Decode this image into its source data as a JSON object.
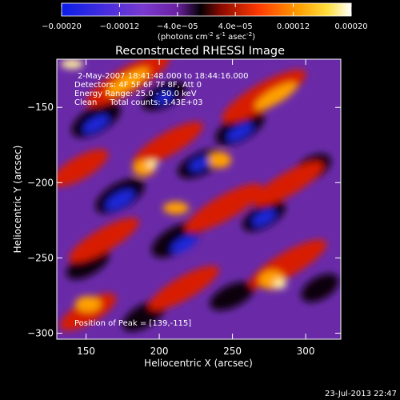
{
  "chart_data": {
    "type": "heatmap",
    "title": "Reconstructed RHESSI Image",
    "xlabel": "Heliocentric X (arcsec)",
    "ylabel": "Heliocentric Y (arcsec)",
    "xlim": [
      130,
      324
    ],
    "ylim": [
      -304,
      -118
    ],
    "x_ticks": [
      150,
      200,
      250,
      300
    ],
    "y_ticks": [
      -150,
      -200,
      -250,
      -300
    ],
    "colorbar": {
      "ticks": [
        "-0.00020",
        "-0.00012",
        "-4.0e-05",
        "4.0e-05",
        "0.00012",
        "0.00020"
      ],
      "tick_values": [
        -0.0002,
        -0.00012,
        -4e-05,
        4e-05,
        0.00012,
        0.0002
      ],
      "range": [
        -0.0002,
        0.0002
      ],
      "units_prefix": "(photons cm",
      "units_exp1": "-2",
      "units_mid": " s",
      "units_exp2": "-1",
      "units_mid2": " asec",
      "units_exp3": "-2",
      "units_suffix": ")"
    },
    "annotations": {
      "time": "2-May-2007 18:41:48.000 to 18:44:16.000",
      "detectors": "Detectors: 4F 5F 6F 7F 8F, Att 0",
      "energy": "Energy Range: 25.0 - 50.0 keV",
      "clean": "Clean     Total counts: 3.43E+03",
      "peak": "Position of Peak = [139,-115]"
    },
    "timestamp": "23-Jul-2013 22:47"
  }
}
